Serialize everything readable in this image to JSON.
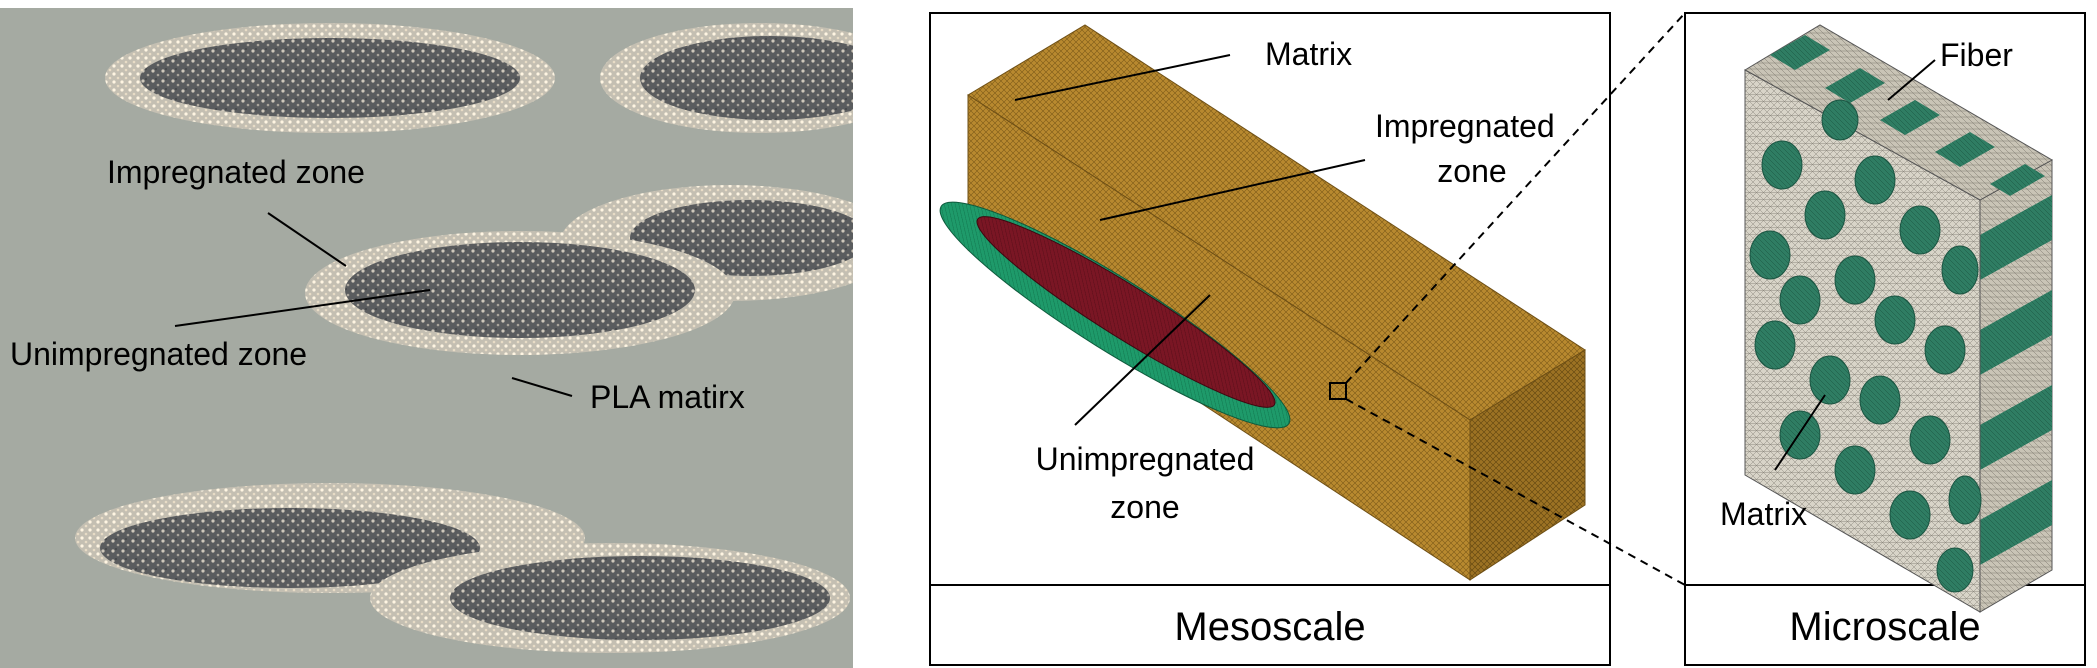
{
  "micrograph": {
    "labels": {
      "impregnated": "Impregnated zone",
      "unimpregnated": "Unimpregnated zone",
      "pla": "PLA matirx"
    }
  },
  "mesoscale": {
    "title": "Mesoscale",
    "labels": {
      "matrix": "Matrix",
      "impregnated_line1": "Impregnated",
      "impregnated_line2": "zone",
      "unimpregnated_line1": "Unimpregnated",
      "unimpregnated_line2": "zone"
    }
  },
  "microscale": {
    "title": "Microscale",
    "labels": {
      "fiber": "Fiber",
      "matrix": "Matrix"
    }
  },
  "colors": {
    "micro_background": "#a5aaa2",
    "tow_dark": "#56585a",
    "matrix_brown": "#b8892f",
    "impregnated_green": "#1e9a6a",
    "unimpregnated_red": "#7a1624",
    "fiber_green": "#2f7d63",
    "micro_matrix": "#d8d4c8"
  }
}
